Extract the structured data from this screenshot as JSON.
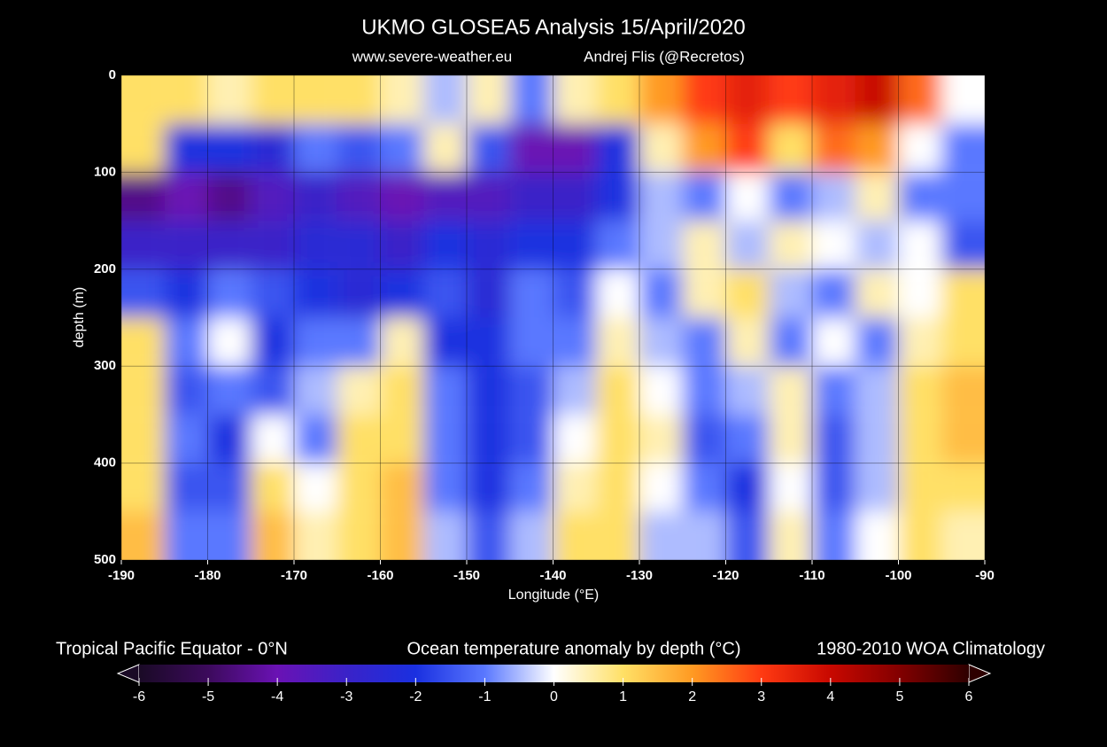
{
  "chart_data": {
    "type": "heatmap",
    "title": "UKMO GLOSEA5 Analysis 15/April/2020",
    "subtitle": "www.severe-weather.eu",
    "credit": "Andrej Flis (@Recretos)",
    "x_label": "Longitude (°E)",
    "y_label": "depth (m)",
    "region_label": "Tropical Pacific Equator - 0°N",
    "colorbar_label": "Ocean temperature anomaly by depth (°C)",
    "climatology_label": "1980-2010 WOA Climatology",
    "xlim": [
      -190,
      -90
    ],
    "xticks": [
      -190,
      -180,
      -170,
      -160,
      -150,
      -140,
      -130,
      -120,
      -110,
      -100,
      -90
    ],
    "ylim": [
      0,
      500
    ],
    "yticks": [
      0,
      100,
      200,
      300,
      400,
      500
    ],
    "y_inverted": true,
    "grid": true,
    "x": [
      -187.5,
      -182.5,
      -177.5,
      -172.5,
      -167.5,
      -162.5,
      -157.5,
      -152.5,
      -147.5,
      -142.5,
      -137.5,
      -132.5,
      -127.5,
      -122.5,
      -117.5,
      -112.5,
      -107.5,
      -102.5,
      -97.5,
      -92.5
    ],
    "y": [
      25,
      75,
      125,
      175,
      225,
      275,
      325,
      375,
      425,
      475
    ],
    "z": [
      [
        1,
        1,
        0.5,
        1,
        1,
        1,
        0.5,
        -0.5,
        0.5,
        -1,
        0.5,
        1,
        2,
        3,
        3.5,
        3,
        3.5,
        4,
        2.5,
        0
      ],
      [
        1,
        -2,
        -2,
        -2.5,
        -1,
        -1.5,
        -1,
        0.5,
        -1.5,
        -4,
        -4,
        -2,
        0.5,
        2,
        3,
        1,
        2.5,
        2,
        0,
        -1
      ],
      [
        -4.5,
        -4,
        -4.5,
        -3.5,
        -3,
        -3.5,
        -4,
        -3.5,
        -3.5,
        -3,
        -3,
        -2,
        -0.5,
        -1,
        0,
        -1,
        -0.5,
        0.5,
        -1,
        -1
      ],
      [
        -3,
        -3,
        -3,
        -3,
        -2.5,
        -2.5,
        -3,
        -2,
        -2.5,
        -2,
        -2,
        -1,
        -0.5,
        0.5,
        -0.5,
        0.5,
        0,
        -0.5,
        0,
        -1.5
      ],
      [
        -1.5,
        -2,
        -1,
        -1.5,
        -2,
        -2.5,
        -2,
        -1.5,
        -2.5,
        -1,
        -1.5,
        0,
        -1,
        0.5,
        1,
        -0.5,
        -1,
        0.5,
        0,
        1
      ],
      [
        1,
        -1,
        0,
        -2,
        -1,
        -1,
        0.5,
        -2,
        -2,
        -1,
        -1,
        0.5,
        -0.5,
        -1,
        0.5,
        -1,
        0,
        -1,
        0.5,
        1
      ],
      [
        1,
        -1.5,
        -1,
        -1.5,
        -0.5,
        0.5,
        1,
        -1,
        -2,
        -1.5,
        -0.5,
        1,
        0,
        -1,
        -0.5,
        0.5,
        -1,
        -0.5,
        1,
        1.5
      ],
      [
        1,
        -1,
        -2,
        0,
        -1,
        1,
        1,
        -1,
        -2,
        -1.5,
        0,
        1,
        0.5,
        -1.5,
        -1,
        0.5,
        -1.5,
        -0.5,
        1,
        1.5
      ],
      [
        1,
        -1.5,
        -1.5,
        1,
        0,
        1,
        1.5,
        -1,
        -2,
        -1,
        0.5,
        1,
        0,
        -1,
        -2,
        0,
        -1.5,
        -0.5,
        1,
        1
      ],
      [
        1.5,
        -1,
        -1,
        1.5,
        0.5,
        1,
        1.5,
        -0.5,
        -1.5,
        -0.5,
        1,
        1,
        -0.5,
        -0.5,
        -1.5,
        0.5,
        -1,
        0,
        1,
        0.5
      ]
    ],
    "colorbar": {
      "lim": [
        -6,
        6
      ],
      "ticks": [
        -6,
        -5,
        -4,
        -3,
        -2,
        -1,
        0,
        1,
        2,
        3,
        4,
        5,
        6
      ],
      "colors": [
        "#1a0a26",
        "#3c0a5c",
        "#6a12b4",
        "#3a22c8",
        "#1a30e0",
        "#5a78ff",
        "#ffffff",
        "#ffe066",
        "#ff9a22",
        "#ff3a12",
        "#c80800",
        "#820000",
        "#2e0000"
      ]
    }
  }
}
